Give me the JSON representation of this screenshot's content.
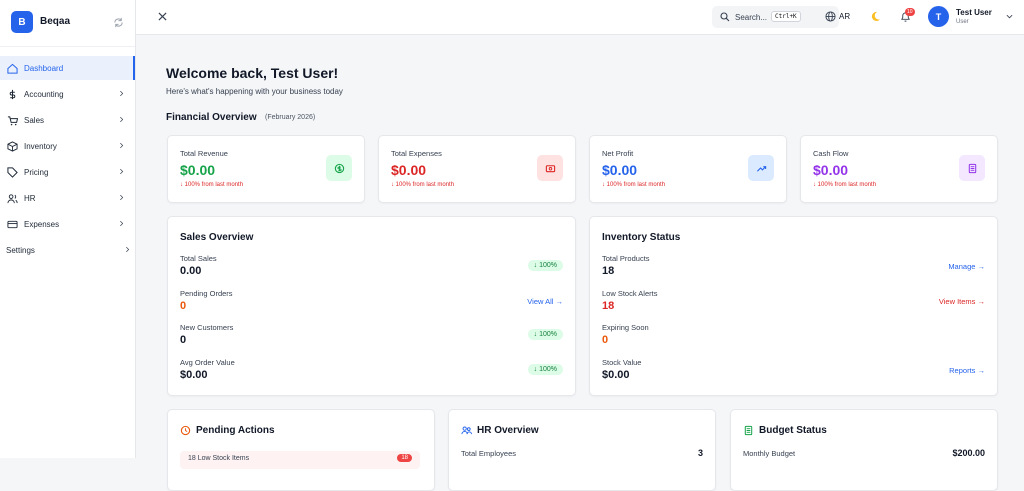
{
  "sidebar": {
    "logo": "B",
    "brand": "Beqaa",
    "nav": [
      "Dashboard",
      "Accounting",
      "Sales",
      "Inventory",
      "Pricing",
      "HR",
      "Expenses",
      "Settings"
    ]
  },
  "topbar": {
    "search": "Search...",
    "shortcut": "Ctrl+K",
    "language": "AR",
    "notifications": "10",
    "avatar": "T",
    "user_name": "Test User",
    "user_role": "User"
  },
  "main": {
    "welcome": "Welcome back, Test User!",
    "subtitle": "Here's what's happening with your business today",
    "section_title": "Financial Overview",
    "period": "(February 2026)",
    "stat_cards": [
      {
        "label": "Total Revenue",
        "value": "$0.00",
        "change": "↓ 100% from last month"
      },
      {
        "label": "Total Expenses",
        "value": "$0.00",
        "change": "↓ 100% from last month"
      },
      {
        "label": "Net Profit",
        "value": "$0.00",
        "change": "↓ 100% from last month"
      },
      {
        "label": "Cash Flow",
        "value": "$0.00",
        "change": "↓ 100% from last month"
      }
    ],
    "sales_overview": {
      "title": "Sales Overview",
      "rows": [
        {
          "label": "Total Sales",
          "value": "0.00",
          "badge": "↓ 100%"
        },
        {
          "label": "Pending Orders",
          "value": "0",
          "link": "View All →"
        },
        {
          "label": "New Customers",
          "value": "0",
          "badge": "↓ 100%"
        },
        {
          "label": "Avg Order Value",
          "value": "$0.00",
          "badge": "↓ 100%"
        }
      ]
    },
    "inventory_status": {
      "title": "Inventory Status",
      "rows": [
        {
          "label": "Total Products",
          "value": "18",
          "link": "Manage →"
        },
        {
          "label": "Low Stock Alerts",
          "value": "18",
          "link": "View Items →"
        },
        {
          "label": "Expiring Soon",
          "value": "0"
        },
        {
          "label": "Stock Value",
          "value": "$0.00",
          "link": "Reports →"
        }
      ]
    },
    "pending_actions": {
      "title": "Pending Actions",
      "items": [
        {
          "label": "18 Low Stock Items",
          "count": "18"
        }
      ]
    },
    "hr_overview": {
      "title": "HR Overview",
      "rows": [
        {
          "label": "Total Employees",
          "value": "3"
        }
      ]
    },
    "budget_status": {
      "title": "Budget Status",
      "rows": [
        {
          "label": "Monthly Budget",
          "value": "$200.00"
        }
      ]
    }
  }
}
